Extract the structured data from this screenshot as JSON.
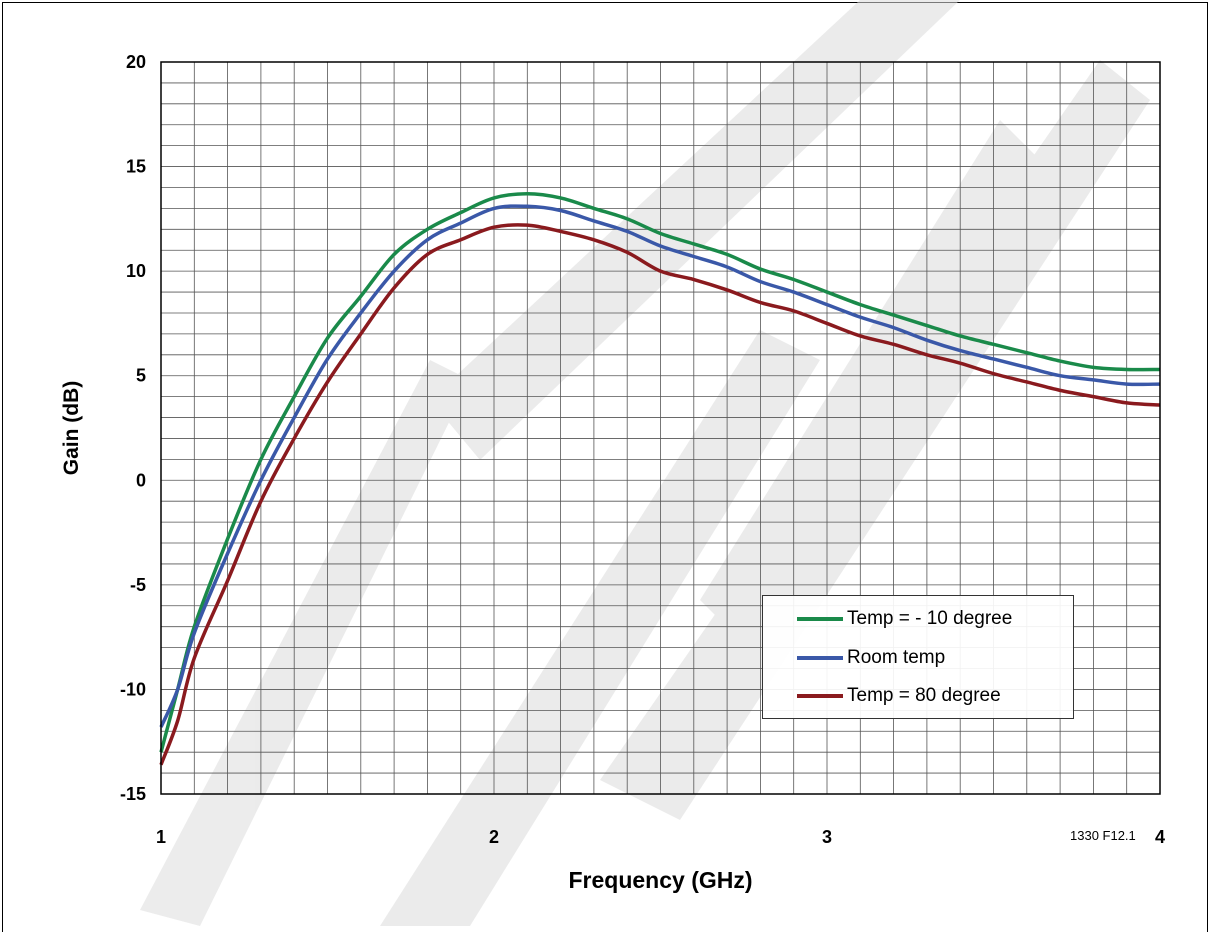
{
  "chart_data": {
    "type": "line",
    "xlabel": "Frequency (GHz)",
    "ylabel": "Gain (dB)",
    "xlim": [
      1,
      4
    ],
    "ylim": [
      -15,
      20
    ],
    "x_ticks": [
      "1",
      "2",
      "3",
      "4"
    ],
    "y_ticks": [
      "20",
      "15",
      "10",
      "5",
      "0",
      "-5",
      "-10",
      "-15"
    ],
    "x_minor_step": 0.1,
    "y_minor_step": 1,
    "grid": true,
    "legend_position": "lower-right",
    "series": [
      {
        "name": "Temp = - 10 degree",
        "color": "#1a8a4a",
        "points": [
          [
            1.0,
            -13.0
          ],
          [
            1.05,
            -10.0
          ],
          [
            1.1,
            -7.0
          ],
          [
            1.2,
            -2.8
          ],
          [
            1.3,
            1.0
          ],
          [
            1.4,
            4.0
          ],
          [
            1.5,
            6.8
          ],
          [
            1.6,
            8.8
          ],
          [
            1.7,
            10.8
          ],
          [
            1.8,
            12.0
          ],
          [
            1.9,
            12.8
          ],
          [
            2.0,
            13.5
          ],
          [
            2.1,
            13.7
          ],
          [
            2.2,
            13.5
          ],
          [
            2.3,
            13.0
          ],
          [
            2.4,
            12.5
          ],
          [
            2.5,
            11.8
          ],
          [
            2.6,
            11.3
          ],
          [
            2.7,
            10.8
          ],
          [
            2.8,
            10.1
          ],
          [
            2.9,
            9.6
          ],
          [
            3.0,
            9.0
          ],
          [
            3.1,
            8.4
          ],
          [
            3.2,
            7.9
          ],
          [
            3.3,
            7.4
          ],
          [
            3.4,
            6.9
          ],
          [
            3.5,
            6.5
          ],
          [
            3.6,
            6.1
          ],
          [
            3.7,
            5.7
          ],
          [
            3.8,
            5.4
          ],
          [
            3.9,
            5.3
          ],
          [
            4.0,
            5.3
          ]
        ]
      },
      {
        "name": "Room temp",
        "color": "#3a58a8",
        "points": [
          [
            1.0,
            -11.8
          ],
          [
            1.05,
            -10.0
          ],
          [
            1.1,
            -7.3
          ],
          [
            1.2,
            -3.5
          ],
          [
            1.3,
            0.0
          ],
          [
            1.4,
            3.0
          ],
          [
            1.5,
            5.8
          ],
          [
            1.6,
            8.0
          ],
          [
            1.7,
            10.0
          ],
          [
            1.8,
            11.5
          ],
          [
            1.9,
            12.3
          ],
          [
            2.0,
            13.0
          ],
          [
            2.1,
            13.1
          ],
          [
            2.2,
            12.9
          ],
          [
            2.3,
            12.4
          ],
          [
            2.4,
            11.9
          ],
          [
            2.5,
            11.2
          ],
          [
            2.6,
            10.7
          ],
          [
            2.7,
            10.2
          ],
          [
            2.8,
            9.5
          ],
          [
            2.9,
            9.0
          ],
          [
            3.0,
            8.4
          ],
          [
            3.1,
            7.8
          ],
          [
            3.2,
            7.3
          ],
          [
            3.3,
            6.7
          ],
          [
            3.4,
            6.2
          ],
          [
            3.5,
            5.8
          ],
          [
            3.6,
            5.4
          ],
          [
            3.7,
            5.0
          ],
          [
            3.8,
            4.8
          ],
          [
            3.9,
            4.6
          ],
          [
            4.0,
            4.6
          ]
        ]
      },
      {
        "name": "Temp = 80 degree",
        "color": "#8a1a1e",
        "points": [
          [
            1.0,
            -13.6
          ],
          [
            1.05,
            -11.5
          ],
          [
            1.1,
            -8.5
          ],
          [
            1.2,
            -4.8
          ],
          [
            1.3,
            -1.0
          ],
          [
            1.4,
            2.0
          ],
          [
            1.5,
            4.7
          ],
          [
            1.6,
            7.0
          ],
          [
            1.7,
            9.2
          ],
          [
            1.8,
            10.8
          ],
          [
            1.9,
            11.5
          ],
          [
            2.0,
            12.1
          ],
          [
            2.1,
            12.2
          ],
          [
            2.2,
            11.9
          ],
          [
            2.3,
            11.5
          ],
          [
            2.4,
            10.9
          ],
          [
            2.5,
            10.0
          ],
          [
            2.6,
            9.6
          ],
          [
            2.7,
            9.1
          ],
          [
            2.8,
            8.5
          ],
          [
            2.9,
            8.1
          ],
          [
            3.0,
            7.5
          ],
          [
            3.1,
            6.9
          ],
          [
            3.2,
            6.5
          ],
          [
            3.3,
            6.0
          ],
          [
            3.4,
            5.6
          ],
          [
            3.5,
            5.1
          ],
          [
            3.6,
            4.7
          ],
          [
            3.7,
            4.3
          ],
          [
            3.8,
            4.0
          ],
          [
            3.9,
            3.7
          ],
          [
            4.0,
            3.6
          ]
        ]
      }
    ],
    "annotations": [
      "1330 F12.1"
    ]
  }
}
